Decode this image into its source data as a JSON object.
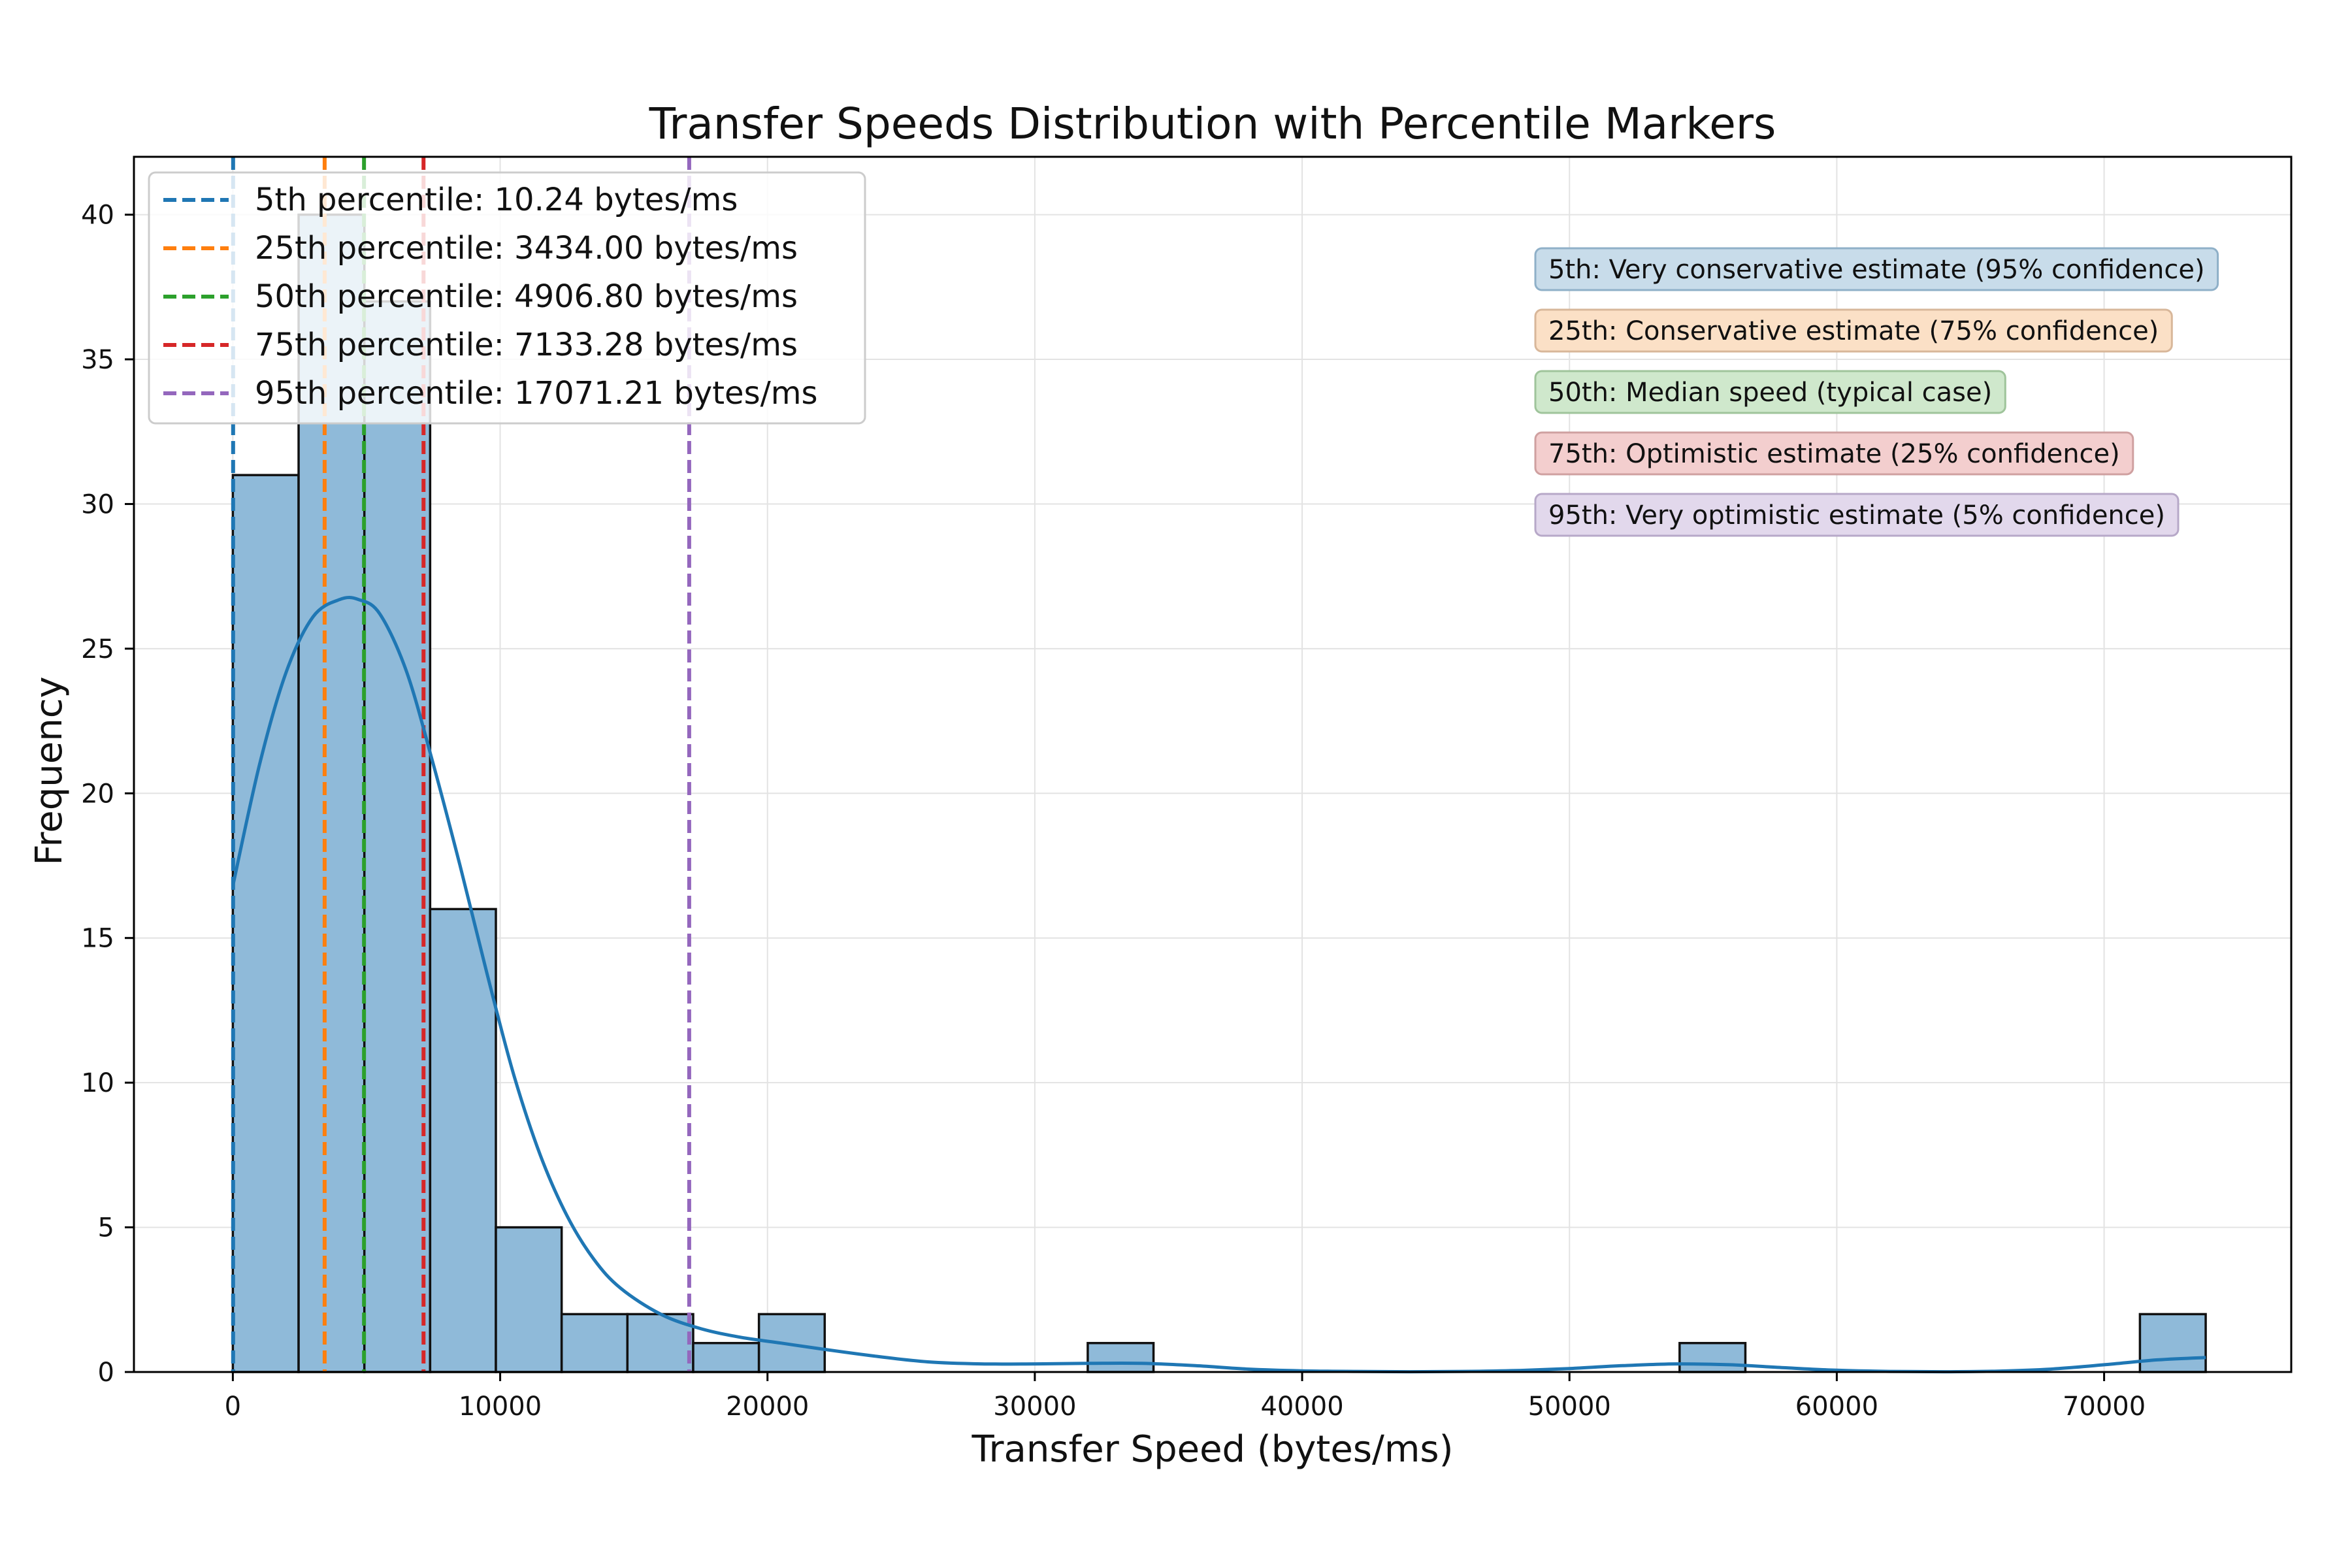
{
  "chart_data": {
    "type": "bar",
    "title": "Transfer Speeds Distribution with Percentile Markers",
    "xlabel": "Transfer Speed (bytes/ms)",
    "ylabel": "Frequency",
    "xlim": [
      -3700,
      77000
    ],
    "ylim": [
      0,
      42
    ],
    "grid": true,
    "x_ticks": [
      0,
      10000,
      20000,
      30000,
      40000,
      50000,
      60000,
      70000
    ],
    "y_ticks": [
      0,
      5,
      10,
      15,
      20,
      25,
      30,
      35,
      40
    ],
    "histogram": {
      "bin_edges": [
        0,
        2460,
        4920,
        7380,
        9840,
        12300,
        14760,
        17220,
        19680,
        22140,
        24600,
        27060,
        29520,
        31980,
        34440,
        36900,
        39360,
        41820,
        44280,
        46740,
        49200,
        51660,
        54120,
        56580,
        59040,
        61500,
        63960,
        66420,
        68880,
        71340,
        73800
      ],
      "counts": [
        31,
        40,
        37,
        16,
        5,
        2,
        2,
        1,
        2,
        0,
        0,
        0,
        0,
        1,
        0,
        0,
        0,
        0,
        0,
        0,
        0,
        0,
        1,
        0,
        0,
        0,
        0,
        0,
        0,
        2
      ],
      "color": "#8fbad9",
      "edge_color": "#111111"
    },
    "kde": {
      "color": "#1f77b4",
      "x": [
        0,
        1000,
        2000,
        3000,
        4000,
        4700,
        5500,
        6500,
        7500,
        8500,
        9500,
        10500,
        11500,
        12500,
        13500,
        14500,
        16000,
        17500,
        19000,
        20500,
        22000,
        24000,
        26000,
        28000,
        30000,
        32000,
        34000,
        36000,
        38000,
        40000,
        42000,
        44000,
        46000,
        48000,
        50000,
        52000,
        54000,
        56000,
        58000,
        60000,
        62000,
        64000,
        66000,
        68000,
        70000,
        72000,
        73800
      ],
      "y": [
        16.8,
        21.0,
        24.2,
        26.1,
        26.7,
        26.7,
        26.2,
        24.2,
        21.0,
        17.5,
        13.8,
        10.3,
        7.5,
        5.4,
        3.9,
        2.9,
        2.0,
        1.5,
        1.2,
        1.0,
        0.8,
        0.55,
        0.35,
        0.28,
        0.28,
        0.3,
        0.3,
        0.22,
        0.1,
        0.04,
        0.02,
        0.01,
        0.02,
        0.05,
        0.12,
        0.22,
        0.28,
        0.25,
        0.15,
        0.06,
        0.02,
        0.01,
        0.03,
        0.1,
        0.25,
        0.42,
        0.5
      ]
    },
    "percentiles": [
      {
        "label": "5th percentile: 10.24 bytes/ms",
        "value": 10.24,
        "color": "#1f77b4"
      },
      {
        "label": "25th percentile: 3434.00 bytes/ms",
        "value": 3434.0,
        "color": "#ff7f0e"
      },
      {
        "label": "50th percentile: 4906.80 bytes/ms",
        "value": 4906.8,
        "color": "#2ca02c"
      },
      {
        "label": "75th percentile: 7133.28 bytes/ms",
        "value": 7133.28,
        "color": "#d62728"
      },
      {
        "label": "95th percentile: 17071.21 bytes/ms",
        "value": 17071.21,
        "color": "#9467bd"
      }
    ],
    "legend_position": "top-left",
    "annotations": [
      {
        "text": "5th: Very conservative estimate (95% confidence)",
        "fill": "#c8dcea",
        "stroke": "#8fb0c8"
      },
      {
        "text": "25th: Conservative estimate (75% confidence)",
        "fill": "#fbe0c6",
        "stroke": "#d8b79a"
      },
      {
        "text": "50th: Median speed (typical case)",
        "fill": "#cfe8cc",
        "stroke": "#9fc49b"
      },
      {
        "text": "75th: Optimistic estimate (25% confidence)",
        "fill": "#f3cece",
        "stroke": "#cfa0a0"
      },
      {
        "text": "95th: Very optimistic estimate (5% confidence)",
        "fill": "#e2d8ec",
        "stroke": "#b7a8c8"
      }
    ]
  }
}
